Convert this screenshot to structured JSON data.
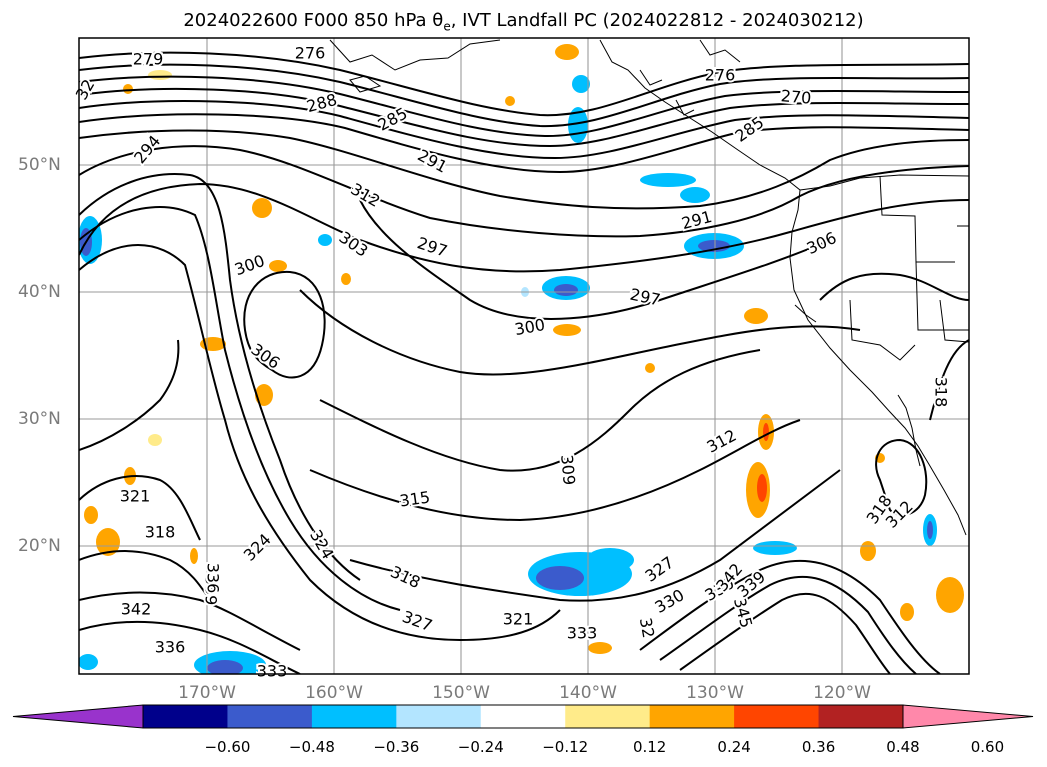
{
  "title": {
    "prefix": "2024022600 F000 850 hPa θ",
    "subscript": "e",
    "suffix": ", IVT Landfall PC (2024022812 - 2024030212)"
  },
  "map": {
    "lat_labels": [
      "50°N",
      "40°N",
      "30°N",
      "20°N"
    ],
    "lon_labels": [
      "170°W",
      "160°W",
      "150°W",
      "140°W",
      "130°W",
      "120°W"
    ],
    "grid": true,
    "contour_labels": [
      "279",
      "276",
      "288",
      "285",
      "294",
      "312",
      "291",
      "297",
      "303",
      "300",
      "306",
      "276",
      "270",
      "285",
      "291",
      "306",
      "297",
      "300",
      "309",
      "312",
      "315",
      "321",
      "318",
      "324",
      "324",
      "318",
      "327",
      "330",
      "333",
      "336",
      "339",
      "342",
      "333",
      "318",
      "312",
      "321",
      "327",
      "330",
      "345",
      "336",
      "339",
      "342",
      "318",
      "32",
      "32"
    ]
  },
  "colorbar": {
    "colors": [
      "#9933cc",
      "#00008b",
      "#3b5bcc",
      "#00bfff",
      "#b3e5ff",
      "#ffffff",
      "#ffeb8a",
      "#ffa500",
      "#ff4500",
      "#b22222",
      "#ff88aa"
    ],
    "extend": "both",
    "tick_labels": [
      "−0.60",
      "−0.48",
      "−0.36",
      "−0.24",
      "−0.12",
      "0.12",
      "0.24",
      "0.36",
      "0.48",
      "0.60"
    ]
  }
}
